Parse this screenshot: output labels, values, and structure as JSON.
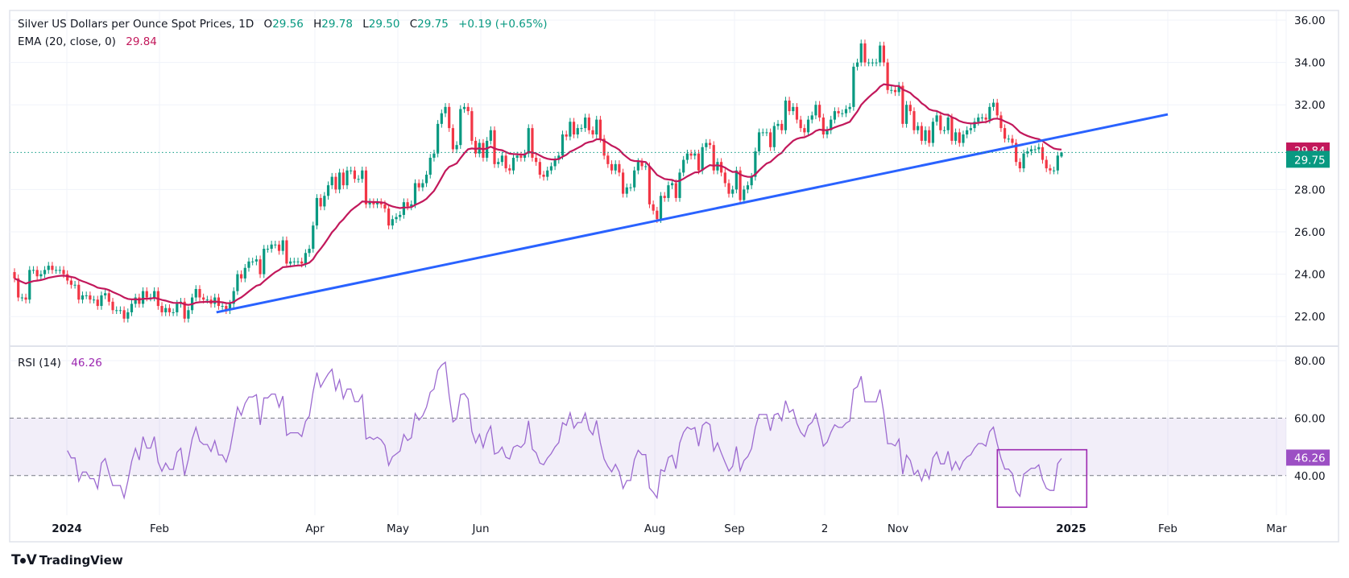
{
  "header": {
    "symbol_title": "Silver US Dollars per Ounce Spot Prices, 1D",
    "o_label": "O",
    "o_value": "29.56",
    "h_label": "H",
    "h_value": "29.78",
    "l_label": "L",
    "l_value": "29.50",
    "c_label": "C",
    "c_value": "29.75",
    "change": "+0.19 (+0.65%)"
  },
  "ema_legend": {
    "label": "EMA (20, close, 0)",
    "value": "29.84"
  },
  "rsi_legend": {
    "label": "RSI (14)",
    "value": "46.26"
  },
  "branding": {
    "logo_text": "TradingView",
    "logo_mark": "17"
  },
  "colors": {
    "up": "#089981",
    "down": "#f23645",
    "ema": "#c2185b",
    "trendline": "#2962ff",
    "rsi": "#9c6ad0",
    "rsi_label": "#9c4fc4",
    "rsi_band": "#7e57c2",
    "grid": "#f0f3fa",
    "border": "#e0e3eb"
  },
  "chart_data": [
    {
      "type": "candlestick",
      "title": "Silver US Dollars per Ounce Spot Prices, 1D",
      "ylim": [
        21.5,
        36.2
      ],
      "y_ticks": [
        "36.00",
        "34.00",
        "32.00",
        "28.00",
        "26.00",
        "24.00",
        "22.00"
      ],
      "x_ticks": [
        "2024",
        "Feb",
        "Apr",
        "May",
        "Jun",
        "Aug",
        "Sep",
        "2",
        "Nov",
        "2025",
        "Feb",
        "Mar"
      ],
      "grid": true,
      "last_bar": {
        "open": 29.56,
        "high": 29.78,
        "low": 29.5,
        "close": 29.75
      },
      "close": [
        23.8,
        22.9,
        22.9,
        22.8,
        24.2,
        24.2,
        23.9,
        24.0,
        24.2,
        24.4,
        24.2,
        24.2,
        24.2,
        24.0,
        23.7,
        23.5,
        23.5,
        22.8,
        23.0,
        23.0,
        22.8,
        22.8,
        22.5,
        23.0,
        23.1,
        22.7,
        22.3,
        22.3,
        22.3,
        21.9,
        22.2,
        22.6,
        22.9,
        22.6,
        23.2,
        22.9,
        22.9,
        23.2,
        22.5,
        22.2,
        22.4,
        22.2,
        22.2,
        22.6,
        22.7,
        21.9,
        22.3,
        22.9,
        23.3,
        22.9,
        22.8,
        22.8,
        22.6,
        22.9,
        22.5,
        22.5,
        22.3,
        22.6,
        23.2,
        24.0,
        23.8,
        24.3,
        24.6,
        24.6,
        24.7,
        24.0,
        25.2,
        25.2,
        25.4,
        25.4,
        25.1,
        25.6,
        24.5,
        24.6,
        24.6,
        24.6,
        24.5,
        25.0,
        25.2,
        26.3,
        27.6,
        27.2,
        27.7,
        28.2,
        28.6,
        28.0,
        28.8,
        28.2,
        28.9,
        28.9,
        28.5,
        28.5,
        28.9,
        27.3,
        27.4,
        27.3,
        27.4,
        27.3,
        27.1,
        26.3,
        26.6,
        26.7,
        26.8,
        27.4,
        27.2,
        27.3,
        28.3,
        28.1,
        28.3,
        28.7,
        29.5,
        29.7,
        31.1,
        31.6,
        31.9,
        30.9,
        29.9,
        30.1,
        31.8,
        31.9,
        31.7,
        30.3,
        29.7,
        30.2,
        29.5,
        30.3,
        30.8,
        29.2,
        29.3,
        29.6,
        29.0,
        28.9,
        29.5,
        29.6,
        29.5,
        29.7,
        30.9,
        29.5,
        29.3,
        28.7,
        28.6,
        28.9,
        29.1,
        29.4,
        29.6,
        30.6,
        30.5,
        31.2,
        30.6,
        30.9,
        30.9,
        31.4,
        30.8,
        30.6,
        31.3,
        30.4,
        29.6,
        29.2,
        28.9,
        29.2,
        28.8,
        27.8,
        28.1,
        28.1,
        28.9,
        29.3,
        29.1,
        29.1,
        27.3,
        27.0,
        26.6,
        27.7,
        27.6,
        28.2,
        28.3,
        27.6,
        28.8,
        29.4,
        29.7,
        29.6,
        29.7,
        28.9,
        30.0,
        30.2,
        30.1,
        28.9,
        29.3,
        28.8,
        28.3,
        27.8,
        28.0,
        28.9,
        27.5,
        28.0,
        28.2,
        28.6,
        29.8,
        30.7,
        30.7,
        30.7,
        30.0,
        31.0,
        31.1,
        30.8,
        32.2,
        31.7,
        31.9,
        31.3,
        30.9,
        30.7,
        31.3,
        31.5,
        32.0,
        31.4,
        30.6,
        30.8,
        31.3,
        31.7,
        31.6,
        31.6,
        31.8,
        31.9,
        33.8,
        34.0,
        34.9,
        34.0,
        34.0,
        34.0,
        34.0,
        34.8,
        34.0,
        32.7,
        32.7,
        32.6,
        32.9,
        31.1,
        32.0,
        31.7,
        30.8,
        31.0,
        30.3,
        30.8,
        30.2,
        31.2,
        31.5,
        30.8,
        30.8,
        31.4,
        30.3,
        30.7,
        30.2,
        30.6,
        30.8,
        30.9,
        31.2,
        31.4,
        31.4,
        31.3,
        31.9,
        32.1,
        31.5,
        30.9,
        30.4,
        30.4,
        30.2,
        29.3,
        29.0,
        29.7,
        29.8,
        29.9,
        29.9,
        30.0,
        29.4,
        29.0,
        28.9,
        28.9,
        29.6,
        29.75
      ],
      "ema": {
        "period": 20,
        "last": 29.84
      },
      "last_price_label": "29.75",
      "ema_price_label": "29.84",
      "trendline": {
        "start": {
          "date": "2024-02-23",
          "price": 22.2
        },
        "end": {
          "date": "2025-02-01",
          "price": 31.55
        }
      }
    },
    {
      "type": "line",
      "title": "RSI (14)",
      "ylim": [
        25,
        85
      ],
      "y_ticks": [
        "80.00",
        "60.00",
        "40.00"
      ],
      "band": [
        40,
        60
      ],
      "last_value_label": "46.26",
      "annotation_box": {
        "start_date": "2024-12-06",
        "end_date": "2025-01-06",
        "top": 49,
        "bottom": 29
      }
    }
  ]
}
